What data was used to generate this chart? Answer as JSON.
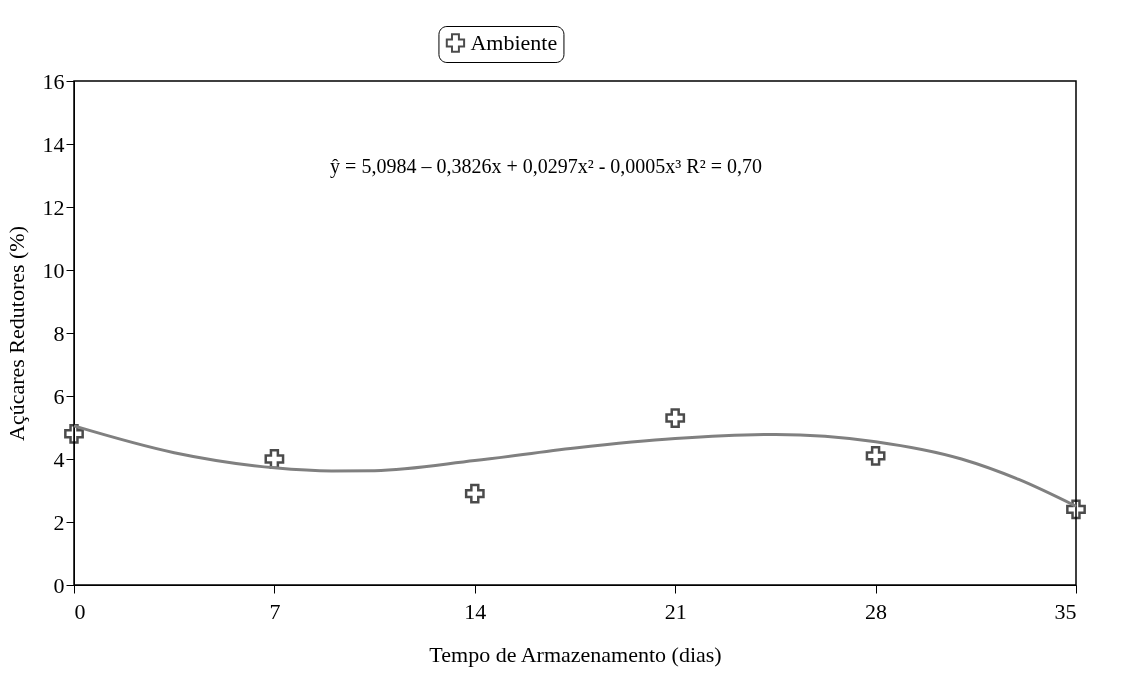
{
  "chart_data": {
    "type": "scatter",
    "xlabel": "Tempo de Armazenamento (dias)",
    "ylabel": "Açúcares Redutores (%)",
    "x": [
      0,
      7,
      14,
      21,
      28,
      35
    ],
    "series": [
      {
        "name": "Ambiente",
        "type": "scatter",
        "color": "#000000",
        "marker": "cross",
        "values": [
          4.8,
          4.0,
          2.9,
          5.3,
          4.1,
          2.4
        ]
      },
      {
        "type": "line",
        "color": "#808080",
        "line_style": "solid",
        "x": [
          0,
          3.5,
          7,
          9,
          10.5,
          14,
          17.5,
          21,
          24.5,
          28,
          31,
          33,
          35
        ],
        "values": [
          5.05,
          4.2,
          3.72,
          3.62,
          3.63,
          3.95,
          4.35,
          4.65,
          4.78,
          4.55,
          4.0,
          3.35,
          2.5
        ]
      }
    ],
    "xlim": [
      0,
      35
    ],
    "xticks": [
      0,
      7,
      14,
      21,
      28,
      35
    ],
    "ylim": [
      0,
      16
    ],
    "yticks": [
      0,
      2,
      4,
      6,
      8,
      10,
      12,
      14,
      16
    ],
    "grid": false,
    "legend": "top",
    "annotations": [
      "ŷ = 5,0984 – 0,3826x + 0,0297x² - 0,0005x³    R² = 0,70"
    ]
  }
}
